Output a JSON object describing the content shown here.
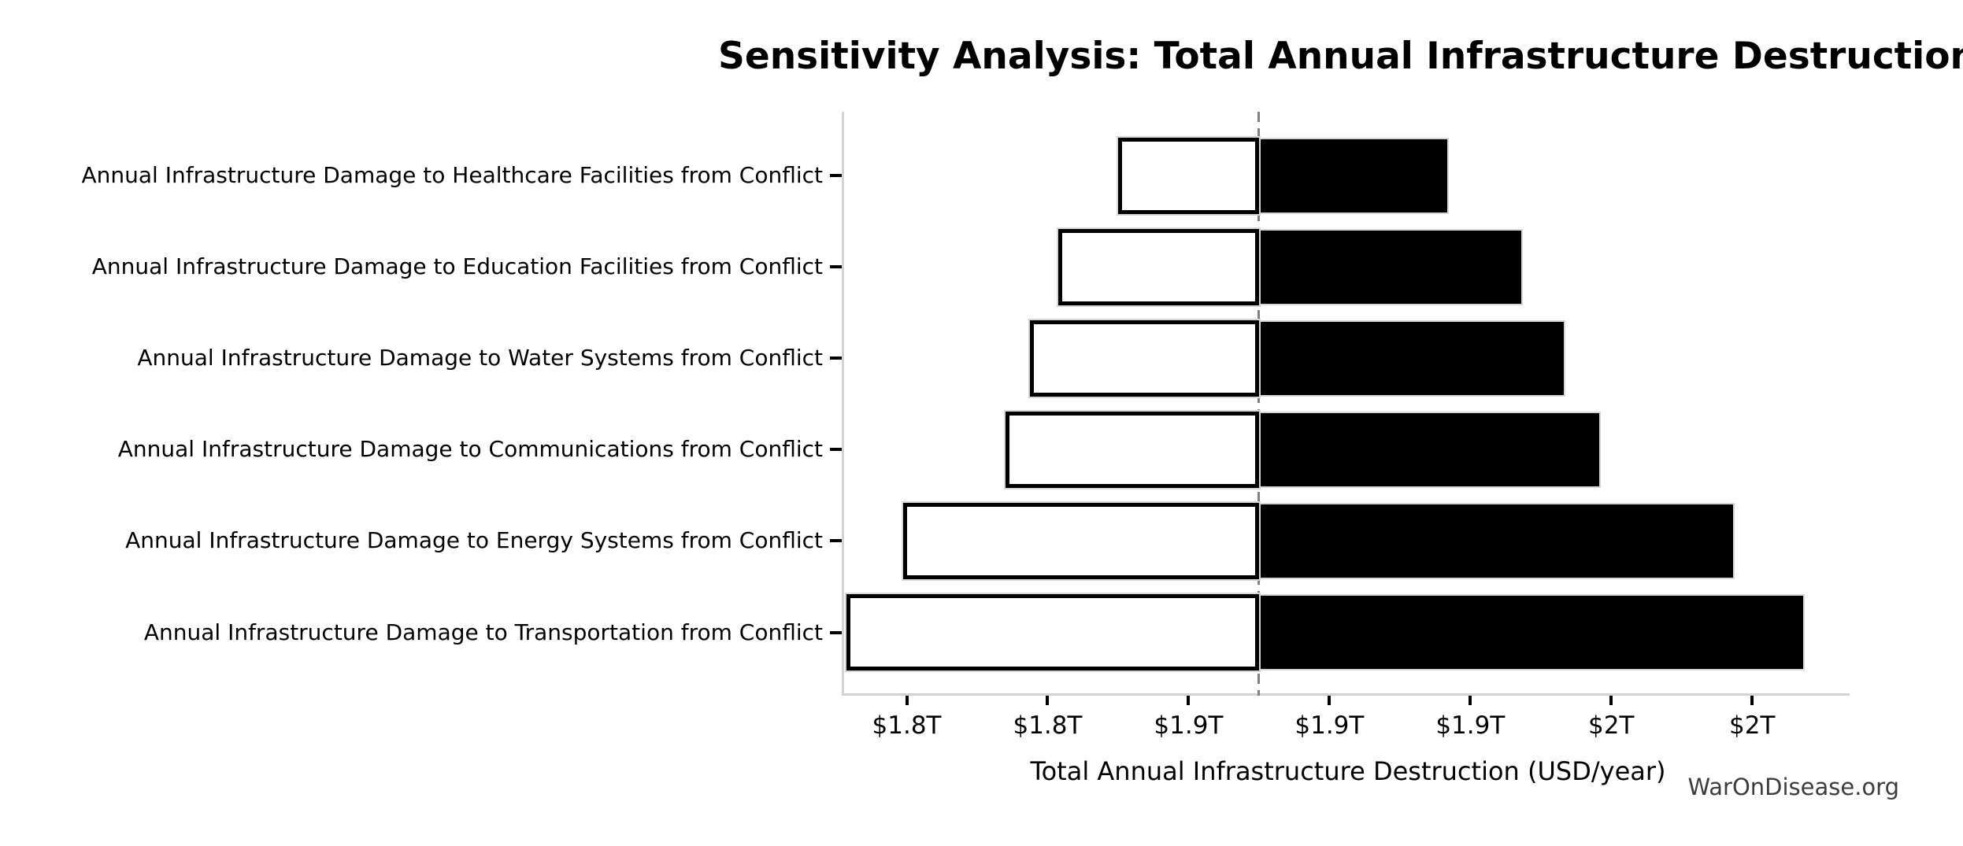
{
  "watermark": "WarOnDisease.org",
  "chart_data": {
    "type": "bar",
    "subtype": "tornado-sensitivity",
    "title": "Sensitivity Analysis: Total Annual Infrastructure Destruction",
    "xlabel": "Total Annual Infrastructure Destruction (USD/year)",
    "ylabel": "",
    "units": "trillions of USD per year",
    "orientation": "horizontal",
    "grid": false,
    "legend": "none",
    "baseline_value": 1.88,
    "xlim": [
      1.762,
      2.047
    ],
    "categories": [
      "Annual Infrastructure Damage to Healthcare Facilities from Conflict",
      "Annual Infrastructure Damage to Education Facilities from Conflict",
      "Annual Infrastructure Damage to Water Systems from Conflict",
      "Annual Infrastructure Damage to Communications from Conflict",
      "Annual Infrastructure Damage to Energy Systems from Conflict",
      "Annual Infrastructure Damage to Transportation from Conflict"
    ],
    "series": [
      {
        "name": "low",
        "values": [
          1.84,
          1.823,
          1.815,
          1.808,
          1.779,
          1.763
        ]
      },
      {
        "name": "high",
        "values": [
          1.934,
          1.955,
          1.967,
          1.977,
          2.015,
          2.035
        ]
      }
    ],
    "x_ticks": [
      {
        "value": 1.78,
        "label": "$1.8T"
      },
      {
        "value": 1.82,
        "label": "$1.8T"
      },
      {
        "value": 1.86,
        "label": "$1.9T"
      },
      {
        "value": 1.9,
        "label": "$1.9T"
      },
      {
        "value": 1.94,
        "label": "$1.9T"
      },
      {
        "value": 1.98,
        "label": "$2T"
      },
      {
        "value": 2.02,
        "label": "$2T"
      }
    ],
    "colors": {
      "low_fill": "#ffffff",
      "low_edge": "#000000",
      "high_fill": "#000000",
      "high_edge": "#d6d6d6",
      "baseline_line": "#808080",
      "spine": "#d3d3d3",
      "tick": "#000000"
    }
  }
}
